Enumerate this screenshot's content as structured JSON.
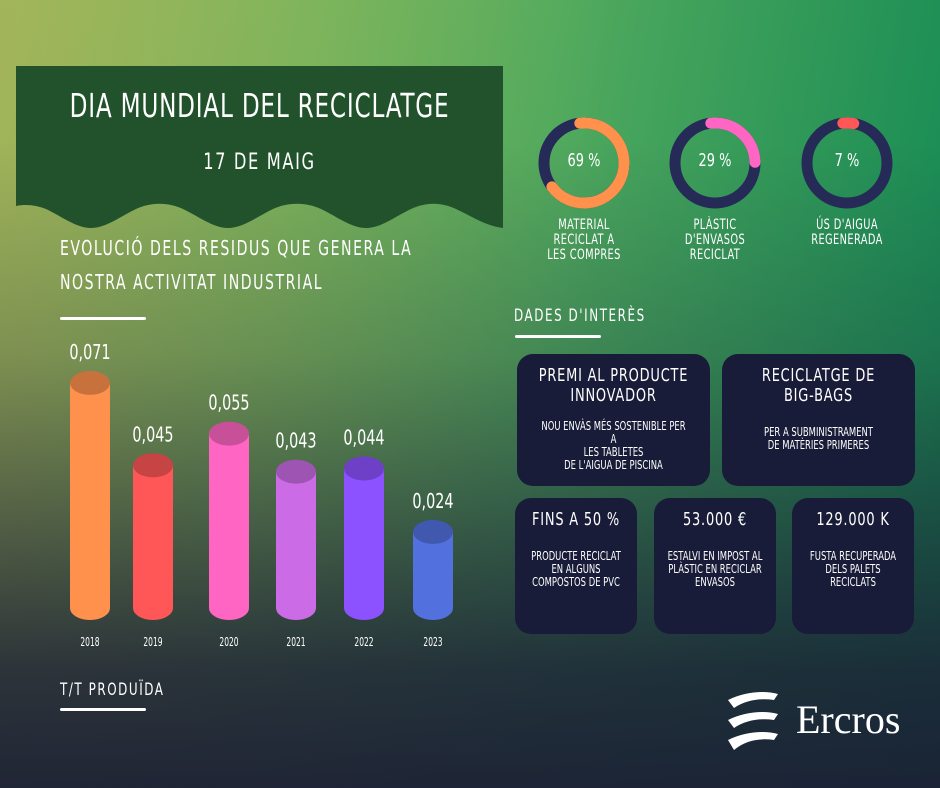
{
  "header": {
    "title": "DIA MUNDIAL DEL RECICLATGE",
    "subtitle": "17 DE MAIG"
  },
  "chart_section": {
    "title_line1": "EVOLUCIÓ DELS RESIDUS QUE GENERA LA",
    "title_line2": "NOSTRA ACTIVITAT INDUSTRIAL",
    "unit_label": "T/T PRODUÏDA"
  },
  "chart_data": {
    "type": "bar",
    "title": "EVOLUCIÓ DELS RESIDUS QUE GENERA LA NOSTRA ACTIVITAT INDUSTRIAL",
    "xlabel": "",
    "ylabel": "T/T PRODUÏDA",
    "categories": [
      "2018",
      "2019",
      "2020",
      "2021",
      "2022",
      "2023"
    ],
    "values": [
      0.071,
      0.045,
      0.055,
      0.043,
      0.044,
      0.024
    ],
    "value_labels": [
      "0,071",
      "0,045",
      "0,055",
      "0,043",
      "0,044",
      "0,024"
    ],
    "colors": [
      "#ff914d",
      "#ff5757",
      "#ff66c4",
      "#cb6ce6",
      "#8c52ff",
      "#5271df"
    ],
    "ylim": [
      0,
      0.075
    ],
    "grid": false
  },
  "donuts": [
    {
      "value": 69,
      "label_value": "69 %",
      "label_lines": [
        "MATERIAL",
        "RECICLAT A",
        "LES COMPRES"
      ],
      "color": "#ff914d"
    },
    {
      "value": 29,
      "label_value": "29 %",
      "label_lines": [
        "PLÀSTIC",
        "D'ENVASOS",
        "RECICLAT"
      ],
      "color": "#ff66c4"
    },
    {
      "value": 7,
      "label_value": "7 %",
      "label_lines": [
        "ÚS D'AIGUA",
        "REGENERADA"
      ],
      "color": "#ff5757"
    }
  ],
  "donut_track_color": "#252a57",
  "facts": {
    "title": "DADES D'INTERÈS",
    "cards": [
      {
        "title_lines": [
          "PREMI AL PRODUCTE",
          "INNOVADOR"
        ],
        "desc_lines": [
          "NOU ENVÀS MÉS SOSTENIBLE PER A",
          "LES TABLETES",
          "DE L'AIGUA DE PISCINA"
        ]
      },
      {
        "title_lines": [
          "RECICLATGE DE",
          "BIG-BAGS"
        ],
        "desc_lines": [
          "PER A SUBMINISTRAMENT",
          "DE MATÈRIES PRIMERES"
        ]
      },
      {
        "title_lines": [
          "FINS A 50 %"
        ],
        "desc_lines": [
          "PRODUCTE RECICLAT",
          "EN ALGUNS",
          "COMPOSTOS DE PVC"
        ]
      },
      {
        "title_lines": [
          "53.000 €"
        ],
        "desc_lines": [
          "ESTALVI EN IMPOST AL",
          "PLÀSTIC EN RECICLAR",
          "ENVASOS"
        ]
      },
      {
        "title_lines": [
          "129.000 K"
        ],
        "desc_lines": [
          "FUSTA RECUPERADA",
          "DELS PALETS",
          "RECICLATS"
        ]
      }
    ]
  },
  "logo": {
    "text": "Ercros",
    "icon": "ercros-waves-icon"
  }
}
